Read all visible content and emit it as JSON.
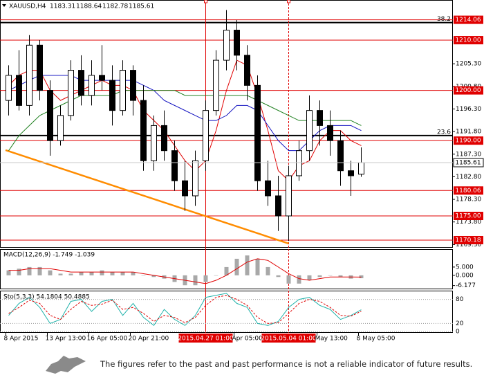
{
  "chart_data": [
    {
      "type": "candlestick",
      "title": "XAUUSD,H4",
      "categories": [
        "8 Apr 2015",
        null,
        null,
        null,
        "13 Apr 13:00",
        null,
        null,
        null,
        "16 Apr 05:00",
        null,
        null,
        null,
        "20 Apr 21:00",
        null,
        null,
        null,
        null,
        null,
        null,
        "2015.04.27 01:00",
        null,
        null,
        "Apr 05:00",
        null,
        null,
        null,
        null,
        "2015.05.04 01:00",
        null,
        null,
        "May 13:00",
        null,
        null,
        null,
        "8 May 05:00"
      ],
      "open": [
        1198,
        1203,
        1197,
        1209,
        1200,
        1190,
        1195,
        1204,
        1199,
        1203,
        1202,
        1196,
        1204,
        1198,
        1186,
        1193,
        1188,
        1182,
        1179,
        1186,
        1196,
        1206,
        1212,
        1207,
        1201,
        1182,
        1179,
        1175,
        1183,
        1188,
        1196,
        1193,
        1190,
        1184,
        1183.31
      ],
      "high": [
        1205,
        1208,
        1211,
        1210,
        1202,
        1197,
        1206,
        1207,
        1206,
        1209,
        1205,
        1206,
        1205,
        1201,
        1195,
        1196,
        1190,
        1186,
        1188,
        1198,
        1208,
        1216,
        1214,
        1209,
        1203,
        1186,
        1183,
        1185,
        1190,
        1199,
        1198,
        1196,
        1192,
        1186,
        1188.64
      ],
      "low": [
        1195,
        1196,
        1195,
        1198,
        1187,
        1189,
        1194,
        1197,
        1197,
        1200,
        1193,
        1195,
        1195,
        1184,
        1184,
        1186,
        1180,
        1176,
        1177,
        1184,
        1195,
        1204,
        1204,
        1198,
        1180,
        1177,
        1172,
        1170,
        1182,
        1186,
        1189,
        1187,
        1181,
        1179,
        1182.78
      ],
      "close": [
        1203,
        1197,
        1209,
        1200,
        1190,
        1195,
        1204,
        1199,
        1203,
        1202,
        1196,
        1204,
        1198,
        1186,
        1193,
        1188,
        1182,
        1179,
        1186,
        1196,
        1206,
        1212,
        1207,
        1201,
        1182,
        1179,
        1175,
        1183,
        1188,
        1196,
        1193,
        1190,
        1184,
        1183,
        1185.61
      ],
      "series": [
        {
          "color": "#e00000",
          "values": [
            1201,
            1203,
            1204,
            1204,
            1200,
            1198,
            1199,
            1200,
            1201,
            1202,
            1201,
            1201,
            1200,
            1196,
            1194,
            1192,
            1189,
            1186,
            1184,
            1186,
            1192,
            1200,
            1206,
            1205,
            1199,
            1192,
            1184,
            1182,
            1185,
            1186,
            1190,
            1192,
            1192,
            1190,
            1189
          ]
        },
        {
          "color": "#1010c0",
          "values": [
            1200,
            1201,
            1202,
            1203,
            1203,
            1203,
            1203,
            1202,
            1202,
            1202,
            1202,
            1202,
            1202,
            1201,
            1200,
            1198,
            1197,
            1196,
            1195,
            1194,
            1194,
            1195,
            1197,
            1197,
            1196,
            1193,
            1190,
            1188,
            1188,
            1190,
            1192,
            1193,
            1193,
            1193,
            1192
          ]
        },
        {
          "color": "#208020",
          "values": [
            1188,
            1191,
            1193,
            1195,
            1196,
            1197,
            1198,
            1199,
            1199,
            1199,
            1199,
            1200,
            1200,
            1200,
            1200,
            1200,
            1200,
            1199,
            1199,
            1199,
            1199,
            1199,
            1199,
            1199,
            1198,
            1197,
            1196,
            1195,
            1194,
            1194,
            1194,
            1194,
            1194,
            1194,
            1193
          ]
        }
      ],
      "ylim": [
        1168.8,
        1218
      ],
      "yticks": [
        {
          "value": 1205.3,
          "label": "1205.30"
        },
        {
          "value": 1200.8,
          "label": "1200.80"
        },
        {
          "value": 1196.3,
          "label": "1196.30"
        },
        {
          "value": 1191.8,
          "label": "1191.80"
        },
        {
          "value": 1187.3,
          "label": "1187.30"
        },
        {
          "value": 1182.8,
          "label": "1182.80"
        },
        {
          "value": 1178.3,
          "label": "1178.30"
        },
        {
          "value": 1173.8,
          "label": "1173.80"
        },
        {
          "value": 1169.3,
          "label": "1169.30"
        }
      ],
      "levels": [
        {
          "value": 1214.06,
          "label": "1214.06"
        },
        {
          "value": 1210,
          "label": "1210.00"
        },
        {
          "value": 1200,
          "label": "1200.00"
        },
        {
          "value": 1190,
          "label": "1190.00"
        },
        {
          "value": 1180.06,
          "label": "1180.06"
        },
        {
          "value": 1175,
          "label": "1175.00"
        },
        {
          "value": 1170.18,
          "label": "1170.18"
        }
      ],
      "level_color": "#e00000",
      "fib_levels": [
        {
          "value": 1213.5,
          "label": "38.2"
        },
        {
          "value": 1191,
          "label": "23.6"
        }
      ],
      "trendline": {
        "color": "#ff8c00",
        "x": [
          -0.3,
          27
        ],
        "values": [
          1188.1,
          1169.5
        ]
      },
      "vlines": [
        19,
        27
      ]
    },
    {
      "type": "macd",
      "title": "MACD(12,26,9) -1.749 -1.039",
      "histogram": [
        3,
        4,
        5,
        5,
        3,
        1,
        1,
        2,
        2,
        3,
        2,
        2,
        2,
        0,
        -1,
        -2,
        -4,
        -6,
        -6,
        -4,
        0,
        5,
        10,
        12,
        10,
        5,
        -1,
        -5,
        -5,
        -3,
        -1,
        0,
        -1,
        -2,
        -1.749
      ],
      "signal": [
        3,
        3,
        4,
        4,
        4,
        3,
        2,
        2,
        2,
        2,
        2,
        2,
        2,
        1,
        0,
        -1,
        -2,
        -3,
        -4,
        -5,
        -3,
        0,
        4,
        8,
        10,
        9,
        5,
        1,
        -2,
        -3,
        -2,
        -1,
        -1,
        -1,
        -1.039
      ],
      "histogram_color": "#a8a8a8",
      "signal_color": "#e00000",
      "ylim": [
        -8,
        15.4
      ],
      "yticks": [
        {
          "value": 5,
          "label": "5.000"
        },
        {
          "value": 0,
          "label": "0.000"
        },
        {
          "value": -6.177,
          "label": "-6.177"
        }
      ]
    },
    {
      "type": "stochastic",
      "title": "Sto(5,3,3) 54.1804 50.4885",
      "main": [
        40,
        70,
        85,
        60,
        20,
        30,
        75,
        80,
        50,
        75,
        80,
        40,
        70,
        35,
        15,
        55,
        30,
        15,
        40,
        85,
        90,
        95,
        70,
        60,
        20,
        15,
        25,
        60,
        80,
        85,
        65,
        55,
        30,
        40,
        54.1804
      ],
      "signal": [
        45,
        60,
        78,
        70,
        40,
        30,
        55,
        75,
        65,
        68,
        78,
        55,
        60,
        45,
        25,
        40,
        35,
        22,
        35,
        65,
        85,
        90,
        80,
        65,
        35,
        20,
        22,
        45,
        70,
        80,
        75,
        60,
        40,
        38,
        50.4885
      ],
      "main_color": "#20b2aa",
      "signal_color": "#e00000",
      "ylim": [
        0,
        100
      ],
      "yticks": [
        0,
        20,
        80
      ],
      "grid": true
    }
  ],
  "footer": {
    "text": "The figures refer to the past and past performance is not a reliable indicator of future results."
  }
}
